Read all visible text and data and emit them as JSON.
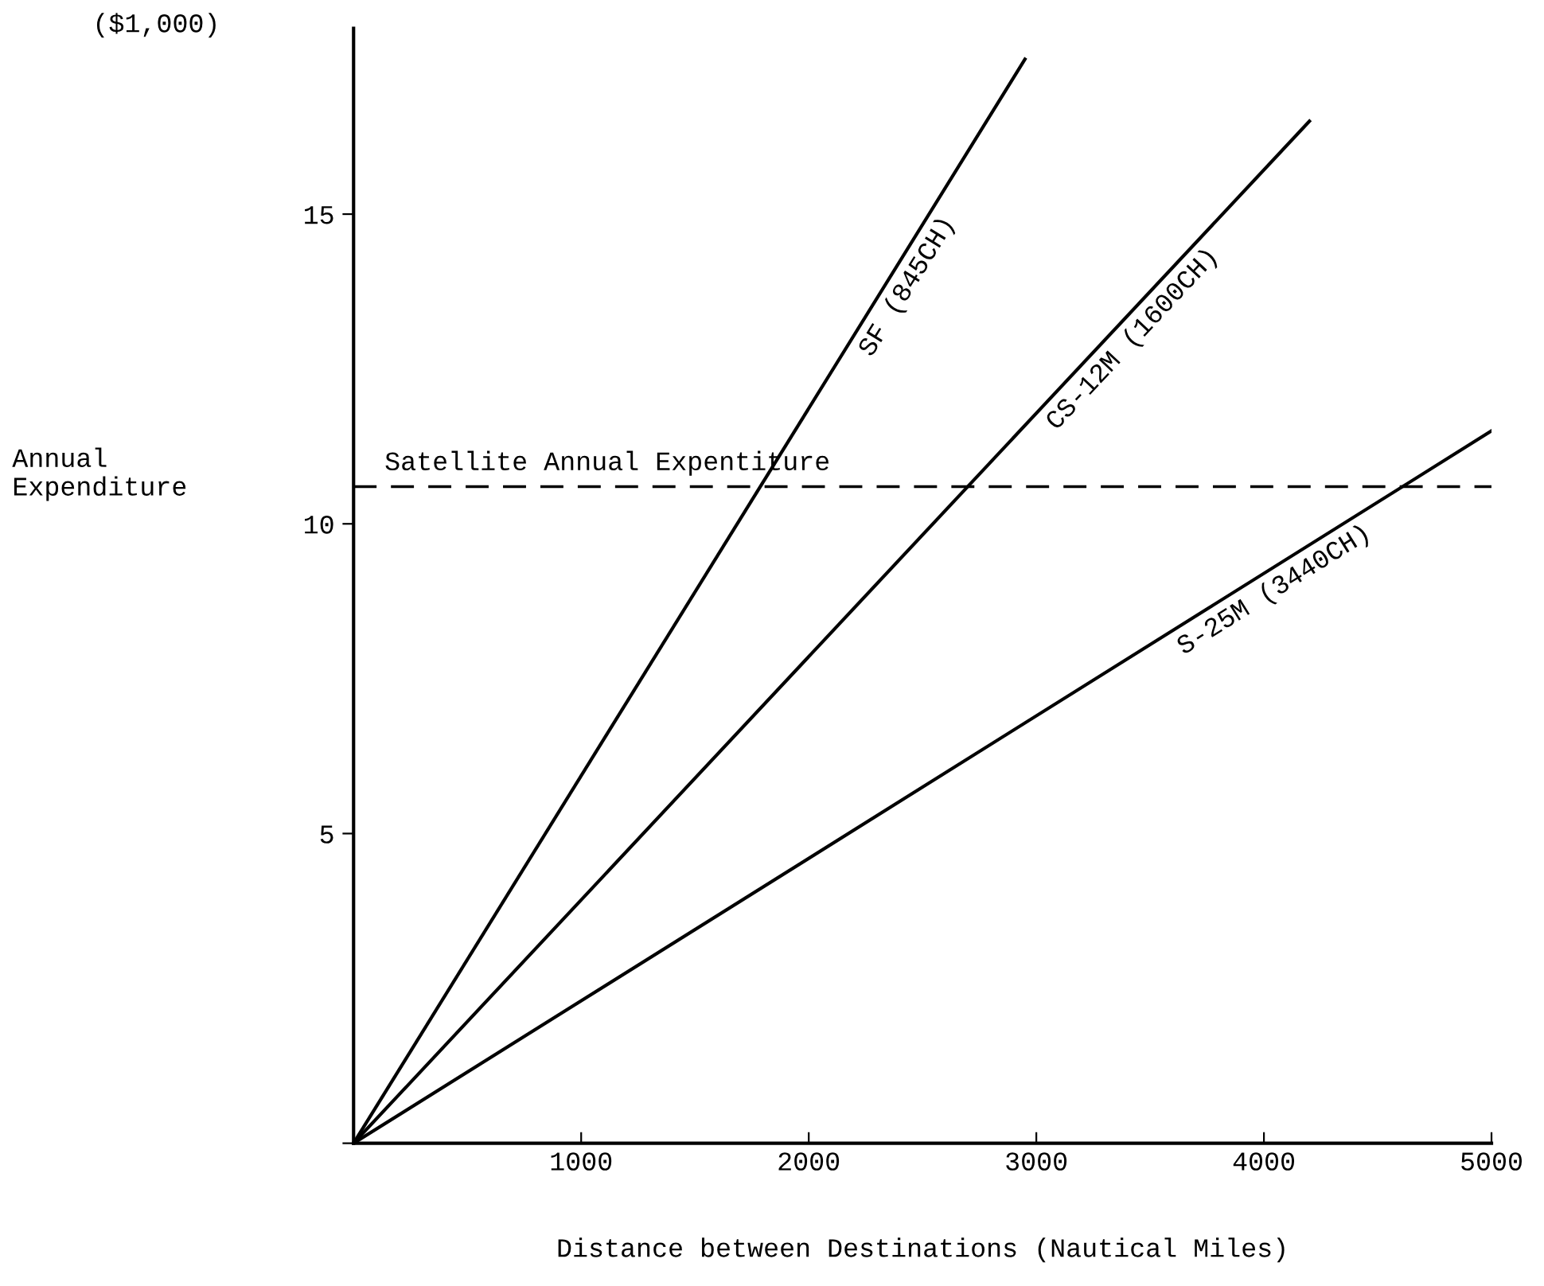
{
  "chart_data": {
    "type": "line",
    "xlabel": "Distance between Destinations (Nautical Miles)",
    "ylabel": "Annual\nExpenditure",
    "annotations": [
      "($1,000)"
    ],
    "series": [
      {
        "name": "SF (845CH)",
        "color": "#000000",
        "x": [
          0,
          2950
        ],
        "values": [
          0,
          17.5
        ]
      },
      {
        "name": "CS-12M (1600CH)",
        "color": "#000000",
        "x": [
          0,
          4200
        ],
        "values": [
          0,
          16.5
        ]
      },
      {
        "name": "S-25M (3440CH)",
        "color": "#000000",
        "x": [
          0,
          5000
        ],
        "values": [
          0,
          11.5
        ]
      }
    ],
    "ref_lines": [
      {
        "axis": "y",
        "value": 10.6,
        "label": "Satellite Annual Expentiture",
        "color": "#000000",
        "line_style": "dashed"
      }
    ],
    "xlim": [
      0,
      5000
    ],
    "ylim": [
      0,
      18
    ],
    "xticks": [
      {
        "value": 0,
        "label": null
      },
      1000,
      2000,
      3000,
      4000,
      5000
    ],
    "yticks": [
      {
        "value": 0,
        "label": null
      },
      5,
      10,
      15
    ],
    "grid": false,
    "legend": false,
    "marker": "none",
    "line_style": "solid"
  }
}
